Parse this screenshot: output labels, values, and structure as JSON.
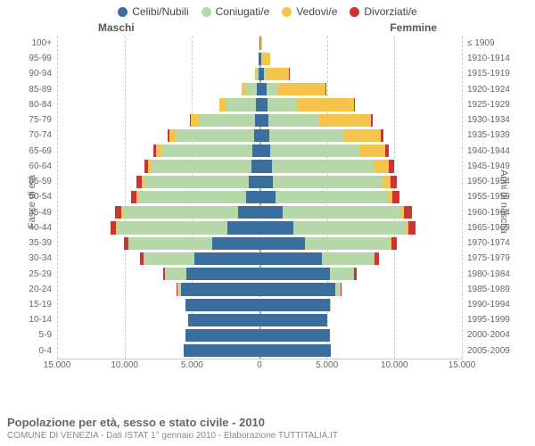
{
  "legend": [
    {
      "label": "Celibi/Nubili",
      "color": "#3b6e9e"
    },
    {
      "label": "Coniugati/e",
      "color": "#b6d7a8"
    },
    {
      "label": "Vedovi/e",
      "color": "#f6c34b"
    },
    {
      "label": "Divorziati/e",
      "color": "#cc3333"
    }
  ],
  "headers": {
    "male": "Maschi",
    "female": "Femmine"
  },
  "axis_left_title": "Fasce di età",
  "axis_right_title": "Anni di nascita",
  "age_labels": [
    "100+",
    "95-99",
    "90-94",
    "85-89",
    "80-84",
    "75-79",
    "70-74",
    "65-69",
    "60-64",
    "55-59",
    "50-54",
    "45-49",
    "40-44",
    "35-39",
    "30-34",
    "25-29",
    "20-24",
    "15-19",
    "10-14",
    "5-9",
    "0-4"
  ],
  "birth_labels": [
    "≤ 1909",
    "1910-1914",
    "1915-1919",
    "1920-1924",
    "1925-1929",
    "1930-1934",
    "1935-1939",
    "1940-1944",
    "1945-1949",
    "1950-1954",
    "1955-1959",
    "1960-1964",
    "1965-1969",
    "1970-1974",
    "1975-1979",
    "1980-1984",
    "1985-1989",
    "1990-1994",
    "1995-1999",
    "2000-2004",
    "2005-2009"
  ],
  "x_ticks": [
    -15000,
    -10000,
    -5000,
    0,
    5000,
    10000,
    15000
  ],
  "x_tick_labels": [
    "15.000",
    "10.000",
    "5.000",
    "0",
    "5.000",
    "10.000",
    "15.000"
  ],
  "x_max": 15000,
  "grid_color": "#cccccc",
  "center_color": "#aaaaaa",
  "bg": "#ffffff",
  "title": "Popolazione per età, sesso e stato civile - 2010",
  "subtitle": "COMUNE DI VENEZIA - Dati ISTAT 1° gennaio 2010 - Elaborazione TUTTITALIA.IT",
  "rows": [
    {
      "m": [
        20,
        5,
        5,
        0
      ],
      "f": [
        60,
        10,
        150,
        0
      ]
    },
    {
      "m": [
        40,
        20,
        30,
        0
      ],
      "f": [
        150,
        40,
        600,
        5
      ]
    },
    {
      "m": [
        100,
        150,
        80,
        5
      ],
      "f": [
        300,
        250,
        1600,
        20
      ]
    },
    {
      "m": [
        200,
        800,
        300,
        20
      ],
      "f": [
        500,
        900,
        3500,
        50
      ]
    },
    {
      "m": [
        250,
        2200,
        500,
        40
      ],
      "f": [
        600,
        2200,
        4200,
        80
      ]
    },
    {
      "m": [
        300,
        4200,
        600,
        80
      ],
      "f": [
        650,
        3800,
        3800,
        120
      ]
    },
    {
      "m": [
        400,
        5800,
        500,
        120
      ],
      "f": [
        700,
        5500,
        2800,
        200
      ]
    },
    {
      "m": [
        500,
        6800,
        350,
        200
      ],
      "f": [
        800,
        6700,
        1800,
        300
      ]
    },
    {
      "m": [
        600,
        7400,
        250,
        280
      ],
      "f": [
        900,
        7600,
        1100,
        400
      ]
    },
    {
      "m": [
        800,
        7800,
        150,
        350
      ],
      "f": [
        1000,
        8100,
        600,
        500
      ]
    },
    {
      "m": [
        1000,
        8000,
        100,
        400
      ],
      "f": [
        1200,
        8300,
        350,
        550
      ]
    },
    {
      "m": [
        1600,
        8600,
        60,
        450
      ],
      "f": [
        1700,
        8800,
        200,
        600
      ]
    },
    {
      "m": [
        2400,
        8200,
        30,
        420
      ],
      "f": [
        2500,
        8400,
        120,
        550
      ]
    },
    {
      "m": [
        3500,
        6200,
        15,
        350
      ],
      "f": [
        3400,
        6300,
        60,
        450
      ]
    },
    {
      "m": [
        4800,
        3800,
        5,
        250
      ],
      "f": [
        4600,
        3900,
        30,
        300
      ]
    },
    {
      "m": [
        5400,
        1600,
        0,
        120
      ],
      "f": [
        5200,
        1800,
        15,
        160
      ]
    },
    {
      "m": [
        5800,
        300,
        0,
        20
      ],
      "f": [
        5600,
        400,
        5,
        30
      ]
    },
    {
      "m": [
        5500,
        10,
        0,
        0
      ],
      "f": [
        5200,
        15,
        0,
        0
      ]
    },
    {
      "m": [
        5300,
        0,
        0,
        0
      ],
      "f": [
        5000,
        0,
        0,
        0
      ]
    },
    {
      "m": [
        5500,
        0,
        0,
        0
      ],
      "f": [
        5200,
        0,
        0,
        0
      ]
    },
    {
      "m": [
        5600,
        0,
        0,
        0
      ],
      "f": [
        5300,
        0,
        0,
        0
      ]
    }
  ]
}
